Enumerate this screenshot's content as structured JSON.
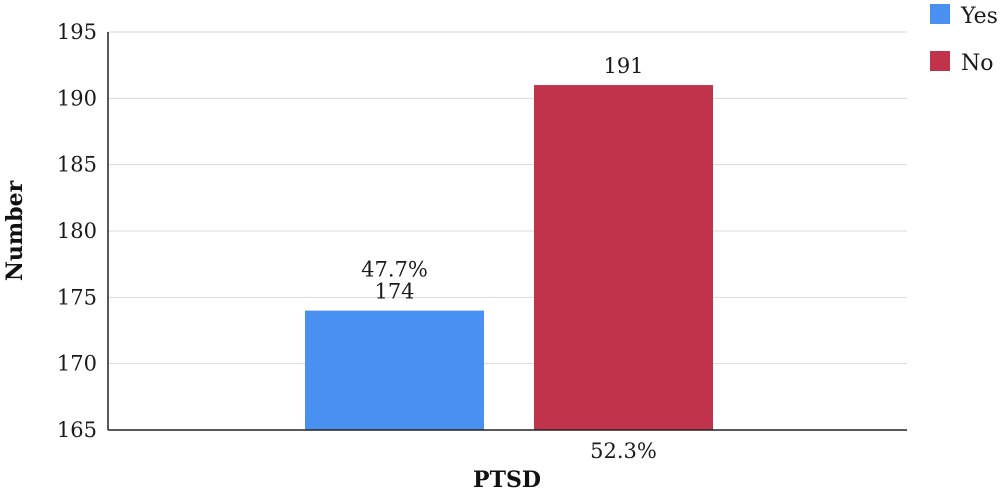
{
  "chart_data": {
    "type": "bar",
    "title": "",
    "xlabel": "PTSD",
    "ylabel": "Number",
    "ylim": [
      165,
      195
    ],
    "yticks": [
      165,
      170,
      175,
      180,
      185,
      190,
      195
    ],
    "grid": true,
    "legend_position": "top-right",
    "series": [
      {
        "name": "Yes",
        "value": 174,
        "percent_label": "47.7%",
        "color": "#4a90f0"
      },
      {
        "name": "No",
        "value": 191,
        "percent_label": "52.3%",
        "color": "#c1334a"
      }
    ]
  }
}
